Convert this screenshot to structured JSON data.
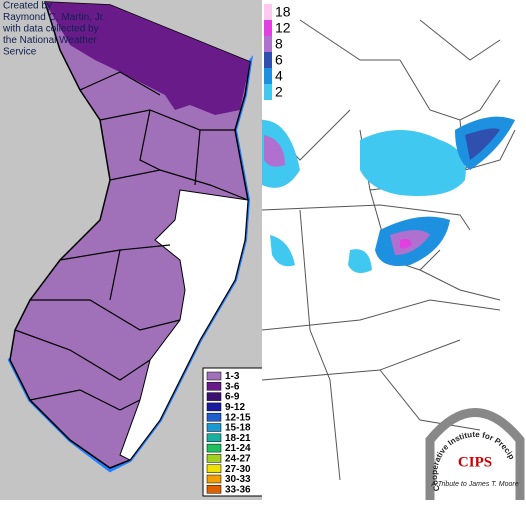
{
  "credit": {
    "lines": [
      "Created by",
      "Raymond C. Martin, Jr.",
      "with data collected by",
      "the National Weather",
      "Service"
    ]
  },
  "left_legend": {
    "items": [
      {
        "label": "1-3",
        "color": "#a070b8"
      },
      {
        "label": "3-6",
        "color": "#6a1b8a"
      },
      {
        "label": "6-9",
        "color": "#3a1070"
      },
      {
        "label": "9-12",
        "color": "#1a1aa0"
      },
      {
        "label": "12-15",
        "color": "#1e5fd0"
      },
      {
        "label": "15-18",
        "color": "#1a9ad0"
      },
      {
        "label": "18-21",
        "color": "#1ab0a0"
      },
      {
        "label": "21-24",
        "color": "#20c060"
      },
      {
        "label": "24-27",
        "color": "#a0d020"
      },
      {
        "label": "27-30",
        "color": "#f0e000"
      },
      {
        "label": "30-33",
        "color": "#f0a000"
      },
      {
        "label": "33-36",
        "color": "#e06000"
      }
    ]
  },
  "right_legend": {
    "items": [
      {
        "label": "18",
        "color": "#ffc8f0"
      },
      {
        "label": "12",
        "color": "#e040e0"
      },
      {
        "label": "8",
        "color": "#b070d0"
      },
      {
        "label": "6",
        "color": "#3050b0"
      },
      {
        "label": "4",
        "color": "#1e90e0"
      },
      {
        "label": "2",
        "color": "#40c8f0"
      }
    ]
  },
  "logo": {
    "ring_text": "Cooperative Institute for Precipitation Systems",
    "name": "CIPS",
    "tribute": "A Tribute to James T. Moore"
  }
}
